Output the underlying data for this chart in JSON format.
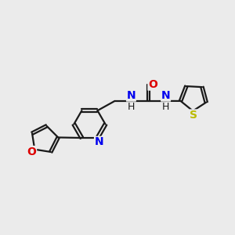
{
  "bg_color": "#ebebeb",
  "bond_color": "#1a1a1a",
  "N_color": "#0000ee",
  "O_color": "#dd0000",
  "S_color": "#bbbb00",
  "line_width": 1.6,
  "font_size": 10,
  "figsize": [
    3.0,
    3.0
  ],
  "dpi": 100,
  "xlim": [
    0,
    12
  ],
  "ylim": [
    0,
    12
  ]
}
